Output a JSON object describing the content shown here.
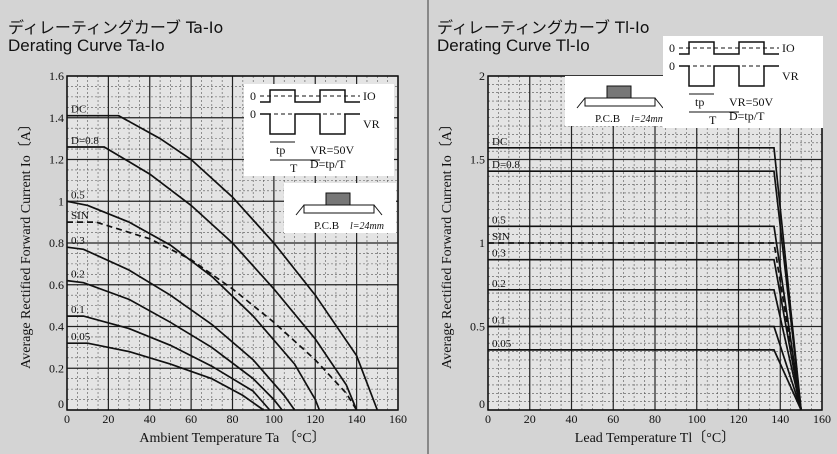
{
  "left": {
    "title_jp": "ディレーティングカーブ Ta-Io",
    "title_en": "Derating Curve Ta-Io",
    "inset": {
      "io": "IO",
      "vr": "VR",
      "conditions": [
        "VR=50V",
        "D=tp/T"
      ],
      "tp": "tp",
      "T": "T",
      "zero1": "0",
      "zero2": "0",
      "pcb": "P.C.B",
      "l": "l=24mm"
    }
  },
  "right": {
    "title_jp": "ディレーティングカーブ Tl-Io",
    "title_en": "Derating Curve Tl-Io",
    "inset": {
      "io": "IO",
      "vr": "VR",
      "conditions": [
        "VR=50V",
        "D=tp/T"
      ],
      "tp": "tp",
      "T": "T",
      "zero1": "0",
      "zero2": "0",
      "pcb": "P.C.B",
      "l": "l=24mm"
    }
  },
  "colors": {
    "background": "#d4d4d4",
    "line": "#111111",
    "major_grid": "#222222",
    "minor_grid": "#555555"
  },
  "chart_data": [
    {
      "type": "line",
      "xlabel": "Ambient Temperature  Ta 〔°C〕",
      "ylabel": "Average Rectified Forward Current  Io〔A〕",
      "xlim": [
        0,
        160
      ],
      "ylim": [
        0,
        1.6
      ],
      "xticks": [
        0,
        20,
        40,
        60,
        80,
        100,
        120,
        140,
        160
      ],
      "yticks": [
        0,
        0.2,
        0.4,
        0.6,
        0.8,
        1,
        1.2,
        1.4,
        1.6
      ],
      "ytick_labels": [
        "0",
        "0.2",
        "0.4",
        "0.6",
        "0.8",
        "1",
        "1.2",
        "1.4",
        "1.6"
      ],
      "grid": true,
      "series": [
        {
          "name": "DC",
          "dashed": false,
          "x": [
            0,
            25,
            45,
            60,
            80,
            100,
            120,
            140,
            150
          ],
          "y": [
            1.41,
            1.41,
            1.3,
            1.2,
            1.02,
            0.8,
            0.55,
            0.26,
            0
          ]
        },
        {
          "name": "D=0.8",
          "dashed": false,
          "x": [
            0,
            18,
            40,
            60,
            80,
            100,
            120,
            135,
            140
          ],
          "y": [
            1.26,
            1.26,
            1.13,
            0.98,
            0.8,
            0.58,
            0.34,
            0.12,
            0
          ]
        },
        {
          "name": "0.5",
          "dashed": false,
          "x": [
            0,
            10,
            30,
            50,
            70,
            90,
            110,
            120,
            122
          ],
          "y": [
            1.0,
            0.98,
            0.9,
            0.79,
            0.64,
            0.45,
            0.22,
            0.05,
            0
          ]
        },
        {
          "name": "SIN",
          "dashed": true,
          "x": [
            0,
            14,
            40,
            60,
            80,
            100,
            120,
            135,
            140
          ],
          "y": [
            0.9,
            0.9,
            0.82,
            0.72,
            0.58,
            0.42,
            0.24,
            0.08,
            0
          ]
        },
        {
          "name": "0.3",
          "dashed": false,
          "x": [
            0,
            8,
            30,
            50,
            70,
            90,
            105,
            110
          ],
          "y": [
            0.78,
            0.77,
            0.67,
            0.55,
            0.41,
            0.24,
            0.07,
            0
          ]
        },
        {
          "name": "0.2",
          "dashed": false,
          "x": [
            0,
            8,
            30,
            50,
            70,
            90,
            100,
            104
          ],
          "y": [
            0.62,
            0.61,
            0.53,
            0.42,
            0.3,
            0.15,
            0.05,
            0
          ]
        },
        {
          "name": "0.1",
          "dashed": false,
          "x": [
            0,
            8,
            30,
            50,
            70,
            90,
            98
          ],
          "y": [
            0.45,
            0.45,
            0.39,
            0.31,
            0.21,
            0.09,
            0
          ]
        },
        {
          "name": "0.05",
          "dashed": false,
          "x": [
            0,
            10,
            30,
            50,
            70,
            85,
            95
          ],
          "y": [
            0.32,
            0.32,
            0.28,
            0.22,
            0.15,
            0.07,
            0
          ]
        }
      ]
    },
    {
      "type": "line",
      "xlabel": "Lead Temperature  Tl〔°C〕",
      "ylabel": "Average Rectified Forward Current  Io〔A〕",
      "xlim": [
        0,
        160
      ],
      "ylim": [
        0,
        2
      ],
      "xticks": [
        0,
        20,
        40,
        60,
        80,
        100,
        120,
        140,
        160
      ],
      "yticks": [
        0,
        0.5,
        1,
        1.5,
        2
      ],
      "ytick_labels": [
        "0",
        "0.5",
        "1",
        "1.5",
        "2"
      ],
      "grid": true,
      "series": [
        {
          "name": "DC",
          "dashed": false,
          "x": [
            0,
            137,
            150
          ],
          "y": [
            1.57,
            1.57,
            0
          ]
        },
        {
          "name": "D=0.8",
          "dashed": false,
          "x": [
            0,
            137,
            150
          ],
          "y": [
            1.43,
            1.43,
            0
          ]
        },
        {
          "name": "0.5",
          "dashed": false,
          "x": [
            0,
            137,
            150
          ],
          "y": [
            1.1,
            1.1,
            0
          ]
        },
        {
          "name": "SIN",
          "dashed": true,
          "x": [
            0,
            137,
            150
          ],
          "y": [
            1.0,
            1.0,
            0
          ]
        },
        {
          "name": "0.3",
          "dashed": false,
          "x": [
            0,
            137,
            150
          ],
          "y": [
            0.9,
            0.9,
            0
          ]
        },
        {
          "name": "0.2",
          "dashed": false,
          "x": [
            0,
            137,
            150
          ],
          "y": [
            0.72,
            0.72,
            0
          ]
        },
        {
          "name": "0.1",
          "dashed": false,
          "x": [
            0,
            137,
            150
          ],
          "y": [
            0.5,
            0.5,
            0
          ]
        },
        {
          "name": "0.05",
          "dashed": false,
          "x": [
            0,
            137,
            150
          ],
          "y": [
            0.36,
            0.36,
            0
          ]
        }
      ]
    }
  ]
}
